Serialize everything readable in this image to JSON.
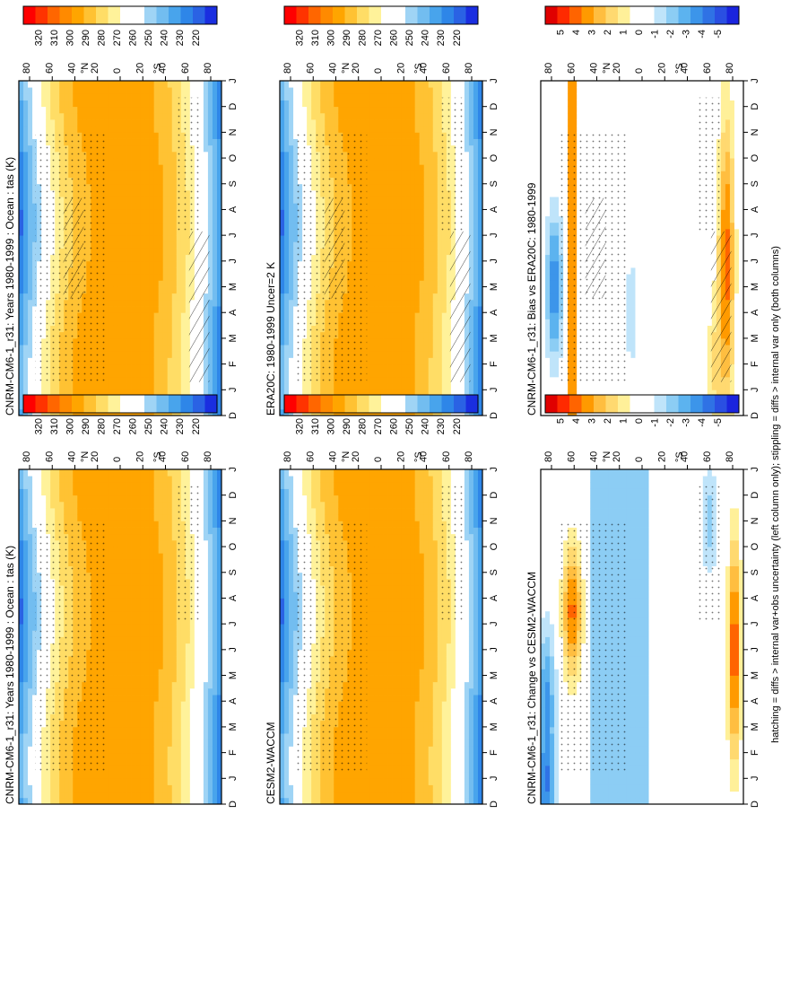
{
  "figure": {
    "footnote": "hatching = diffs > internal var+obs uncertainty (left column only); stippling = diffs > internal var only (both columns)"
  },
  "palettes": {
    "abs_colors": [
      "#ff0000",
      "#ff3300",
      "#ff6600",
      "#ff8a00",
      "#ffa500",
      "#ffc233",
      "#ffdd66",
      "#fff29a",
      "#ffffff",
      "#ffffff",
      "#9fd4f5",
      "#72bdf0",
      "#48a4ec",
      "#2e86e8",
      "#2a62e4",
      "#1a2ee0"
    ],
    "bias_colors": [
      "#e00000",
      "#ff2a00",
      "#ff6400",
      "#ff9a00",
      "#ffbe40",
      "#ffd970",
      "#fff099",
      "#ffffff",
      "#ffffff",
      "#bfe4fa",
      "#8ccdf4",
      "#5cb3ef",
      "#3c95ea",
      "#2f72e5",
      "#2a4fe2",
      "#1a24de"
    ]
  },
  "chart_data": [
    {
      "type": "heatmap",
      "title": "CNRM-CM6-1_r31: Years 1980-1999 : Ocean : tas (K)",
      "x": [
        "D",
        "J",
        "F",
        "M",
        "A",
        "M",
        "J",
        "J",
        "A",
        "S",
        "O",
        "N",
        "D",
        "J"
      ],
      "y_ticks": [
        "80",
        "60",
        "40",
        "20",
        "0",
        "20",
        "40",
        "60",
        "80"
      ],
      "y_hemis": [
        "°N",
        "°S"
      ],
      "colorbar_ticks": [
        "320",
        "310",
        "300",
        "290",
        "280",
        "270",
        "260",
        "250",
        "240",
        "230",
        "220"
      ],
      "palette": "abs",
      "hatching": true,
      "stippling": true
    },
    {
      "type": "heatmap",
      "title": "CNRM-CM6-1_r31: Years 1980-1999 : Ocean : tas (K)",
      "x": [
        "D",
        "J",
        "F",
        "M",
        "A",
        "M",
        "J",
        "J",
        "A",
        "S",
        "O",
        "N",
        "D",
        "J"
      ],
      "y_ticks": [
        "80",
        "60",
        "40",
        "20",
        "0",
        "20",
        "40",
        "60",
        "80"
      ],
      "y_hemis": [
        "°N",
        "°S"
      ],
      "colorbar_ticks": [
        "320",
        "310",
        "300",
        "290",
        "280",
        "270",
        "260",
        "250",
        "240",
        "230",
        "220"
      ],
      "palette": "abs",
      "hatching": false,
      "stippling": true
    },
    {
      "type": "heatmap",
      "title": "ERA20C: 1980-1999 Uncer=2 K",
      "x": [
        "D",
        "J",
        "F",
        "M",
        "A",
        "M",
        "J",
        "J",
        "A",
        "S",
        "O",
        "N",
        "D",
        "J"
      ],
      "y_ticks": [
        "80",
        "60",
        "40",
        "20",
        "0",
        "20",
        "40",
        "60",
        "80"
      ],
      "y_hemis": [
        "°N",
        "°S"
      ],
      "colorbar_ticks": [
        "320",
        "310",
        "300",
        "290",
        "280",
        "270",
        "260",
        "250",
        "240",
        "230",
        "220"
      ],
      "palette": "abs",
      "hatching": true,
      "stippling": true
    },
    {
      "type": "heatmap",
      "title": "CESM2-WACCM",
      "x": [
        "D",
        "J",
        "F",
        "M",
        "A",
        "M",
        "J",
        "J",
        "A",
        "S",
        "O",
        "N",
        "D",
        "J"
      ],
      "y_ticks": [
        "80",
        "60",
        "40",
        "20",
        "0",
        "20",
        "40",
        "60",
        "80"
      ],
      "y_hemis": [
        "°N",
        "°S"
      ],
      "colorbar_ticks": [
        "320",
        "310",
        "300",
        "290",
        "280",
        "270",
        "260",
        "250",
        "240",
        "230",
        "220"
      ],
      "palette": "abs",
      "hatching": false,
      "stippling": true
    },
    {
      "type": "heatmap",
      "title": "CNRM-CM6-1_r31: Bias vs ERA20C: 1980-1999",
      "x": [
        "D",
        "J",
        "F",
        "M",
        "A",
        "M",
        "J",
        "J",
        "A",
        "S",
        "O",
        "N",
        "D",
        "J"
      ],
      "y_ticks": [
        "80",
        "60",
        "40",
        "20",
        "0",
        "20",
        "40",
        "60",
        "80"
      ],
      "y_hemis": [
        "°N",
        "°S"
      ],
      "colorbar_ticks": [
        "5",
        "4",
        "3",
        "2",
        "1",
        "0",
        "-1",
        "-2",
        "-3",
        "-4",
        "-5"
      ],
      "palette": "bias",
      "hatching": true,
      "stippling": true
    },
    {
      "type": "heatmap",
      "title": "CNRM-CM6-1_r31: Change vs CESM2-WACCM",
      "x": [
        "D",
        "J",
        "F",
        "M",
        "A",
        "M",
        "J",
        "J",
        "A",
        "S",
        "O",
        "N",
        "D",
        "J"
      ],
      "y_ticks": [
        "80",
        "60",
        "40",
        "20",
        "0",
        "20",
        "40",
        "60",
        "80"
      ],
      "y_hemis": [
        "°N",
        "°S"
      ],
      "colorbar_ticks": [
        "5",
        "4",
        "3",
        "2",
        "1",
        "0",
        "-1",
        "-2",
        "-3",
        "-4",
        "-5"
      ],
      "palette": "bias",
      "hatching": false,
      "stippling": true
    }
  ]
}
